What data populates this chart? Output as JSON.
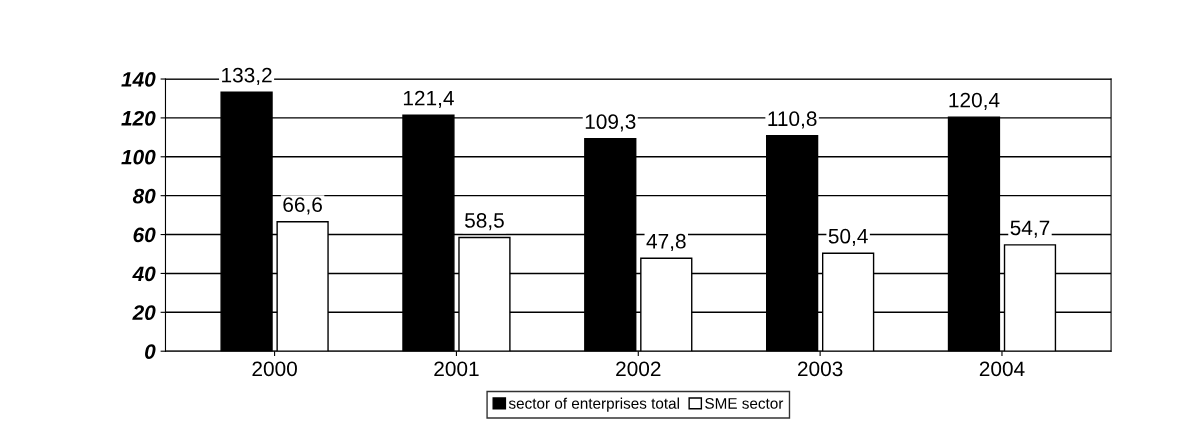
{
  "chart_data": {
    "type": "bar",
    "categories": [
      "2000",
      "2001",
      "2002",
      "2003",
      "2004"
    ],
    "series": [
      {
        "name": "sector of enterprises total",
        "color": "#000000",
        "values": [
          133.2,
          121.4,
          109.3,
          110.8,
          120.4
        ],
        "value_labels": [
          "133,2",
          "121,4",
          "109,3",
          "110,8",
          "120,4"
        ]
      },
      {
        "name": "SME sector",
        "color": "#ffffff",
        "values": [
          66.6,
          58.5,
          47.8,
          50.4,
          54.7
        ],
        "value_labels": [
          "66,6",
          "58,5",
          "47,8",
          "50,4",
          "54,7"
        ]
      }
    ],
    "ylim": [
      0,
      140
    ],
    "yticks": [
      0,
      20,
      40,
      60,
      80,
      100,
      120,
      140
    ],
    "grid": "y",
    "legend": "bottom"
  }
}
